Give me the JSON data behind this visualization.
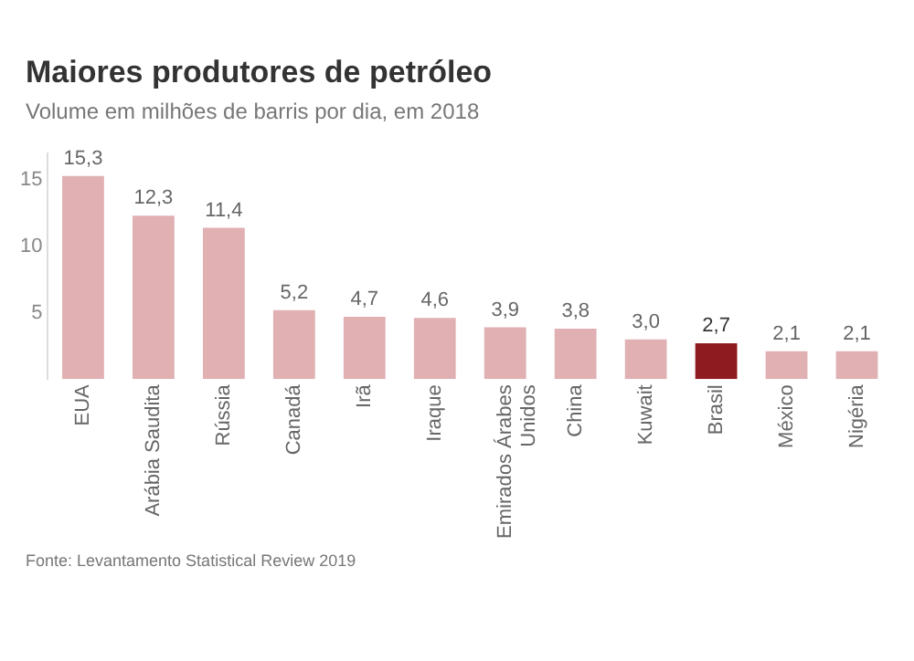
{
  "chart_data": {
    "type": "bar",
    "title": "Maiores produtores de petróleo",
    "subtitle": "Volume em milhões de barris por dia, em 2018",
    "categories": [
      "EUA",
      "Arábia Saudita",
      "Rússia",
      "Canadá",
      "Irã",
      "Iraque",
      "Emirados Árabes Unidos",
      "China",
      "Kuwait",
      "Brasil",
      "México",
      "Nigéria"
    ],
    "values": [
      15.3,
      12.3,
      11.4,
      5.2,
      4.7,
      4.6,
      3.9,
      3.8,
      3.0,
      2.7,
      2.1,
      2.1
    ],
    "colors": [
      "#e0b0b3",
      "#e0b0b3",
      "#e0b0b3",
      "#e0b0b3",
      "#e0b0b3",
      "#e0b0b3",
      "#e0b0b3",
      "#e0b0b3",
      "#e0b0b3",
      "#8e1b1f",
      "#e0b0b3",
      "#e0b0b3"
    ],
    "value_labels": [
      "15,3",
      "12,3",
      "11,4",
      "5,2",
      "4,7",
      "4,6",
      "3,9",
      "3,8",
      "3,0",
      "2,7",
      "2,1",
      "2,1"
    ],
    "ylim": [
      0,
      17
    ],
    "yticks": [
      5,
      10,
      15
    ],
    "grid": false,
    "legend": false,
    "annotations": [
      "Fonte: Levantamento Statistical Review 2019"
    ]
  }
}
